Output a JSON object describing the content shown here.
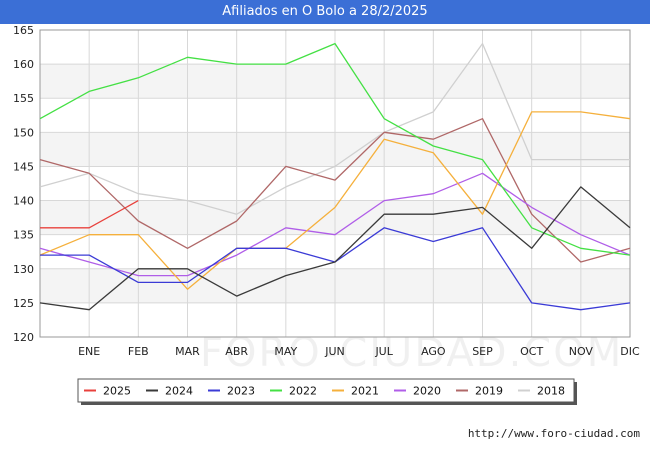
{
  "header": {
    "title": "Afiliados en O Bolo a 28/2/2025"
  },
  "footer": {
    "url": "http://www.foro-ciudad.com",
    "watermark": "FORO-CIUDAD.COM"
  },
  "chart_data": {
    "type": "line",
    "title": "Afiliados en O Bolo a 28/2/2025",
    "xlabel": "",
    "ylabel": "",
    "categories": [
      "",
      "ENE",
      "FEB",
      "MAR",
      "ABR",
      "MAY",
      "JUN",
      "JUL",
      "AGO",
      "SEP",
      "OCT",
      "NOV",
      "DIC"
    ],
    "ylim": [
      120,
      165
    ],
    "yticks": [
      120,
      125,
      130,
      135,
      140,
      145,
      150,
      155,
      160,
      165
    ],
    "grid": true,
    "legend_position": "bottom",
    "series": [
      {
        "name": "2025",
        "color": "#e8413c",
        "values": [
          136,
          136,
          140,
          null,
          null,
          null,
          null,
          null,
          null,
          null,
          null,
          null,
          null
        ]
      },
      {
        "name": "2024",
        "color": "#3a3a3a",
        "values": [
          125,
          124,
          130,
          130,
          126,
          129,
          131,
          138,
          138,
          139,
          133,
          142,
          136
        ]
      },
      {
        "name": "2023",
        "color": "#3b3bd6",
        "values": [
          132,
          132,
          128,
          128,
          133,
          133,
          131,
          136,
          134,
          136,
          125,
          124,
          125
        ]
      },
      {
        "name": "2022",
        "color": "#44e044",
        "values": [
          152,
          156,
          158,
          161,
          160,
          160,
          163,
          152,
          148,
          146,
          136,
          133,
          132
        ]
      },
      {
        "name": "2021",
        "color": "#f5b03c",
        "values": [
          132,
          135,
          135,
          127,
          133,
          133,
          139,
          149,
          147,
          138,
          153,
          153,
          152
        ]
      },
      {
        "name": "2020",
        "color": "#b05ee8",
        "values": [
          133,
          131,
          129,
          129,
          132,
          136,
          135,
          140,
          141,
          144,
          139,
          135,
          132
        ]
      },
      {
        "name": "2019",
        "color": "#b06868",
        "values": [
          146,
          144,
          137,
          133,
          137,
          145,
          143,
          150,
          149,
          152,
          138,
          131,
          133
        ]
      },
      {
        "name": "2018",
        "color": "#d0d0d0",
        "values": [
          142,
          144,
          141,
          140,
          138,
          142,
          145,
          150,
          153,
          163,
          146,
          146,
          146
        ]
      }
    ]
  }
}
